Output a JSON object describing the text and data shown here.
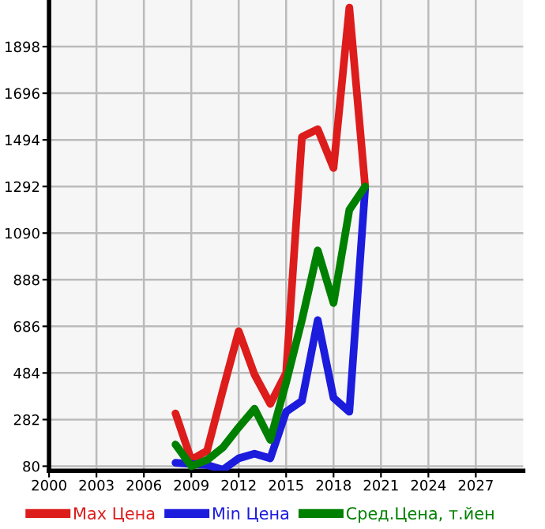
{
  "chart_data": {
    "type": "line",
    "x": [
      2008,
      2009,
      2010,
      2011,
      2012,
      2013,
      2014,
      2015,
      2016,
      2017,
      2018,
      2019,
      2020
    ],
    "series": [
      {
        "name": "Max Цена",
        "color": "#dd1c1c",
        "values": [
          309,
          107,
          147,
          410,
          665,
          477,
          350,
          484,
          1507,
          1540,
          1372,
          2067,
          1292
        ]
      },
      {
        "name": "Min Цена",
        "color": "#1c1cdd",
        "values": [
          95,
          90,
          85,
          65,
          114,
          134,
          114,
          316,
          363,
          713,
          376,
          316,
          1285
        ]
      },
      {
        "name": "Сред.Цена, т.йен",
        "color": "#008000",
        "values": [
          174,
          80,
          107,
          161,
          248,
          329,
          194,
          443,
          713,
          1015,
          787,
          1191,
          1292
        ]
      }
    ],
    "xlim": [
      2000,
      2030
    ],
    "xticks": [
      2000,
      2003,
      2006,
      2009,
      2012,
      2015,
      2018,
      2021,
      2024,
      2027
    ],
    "ylim": [
      60,
      2100
    ],
    "yticks": [
      80,
      282,
      484,
      686,
      888,
      1090,
      1292,
      1494,
      1696,
      1898
    ],
    "grid": true,
    "legend": "bottom",
    "marker": "none",
    "line_style": "solid"
  }
}
